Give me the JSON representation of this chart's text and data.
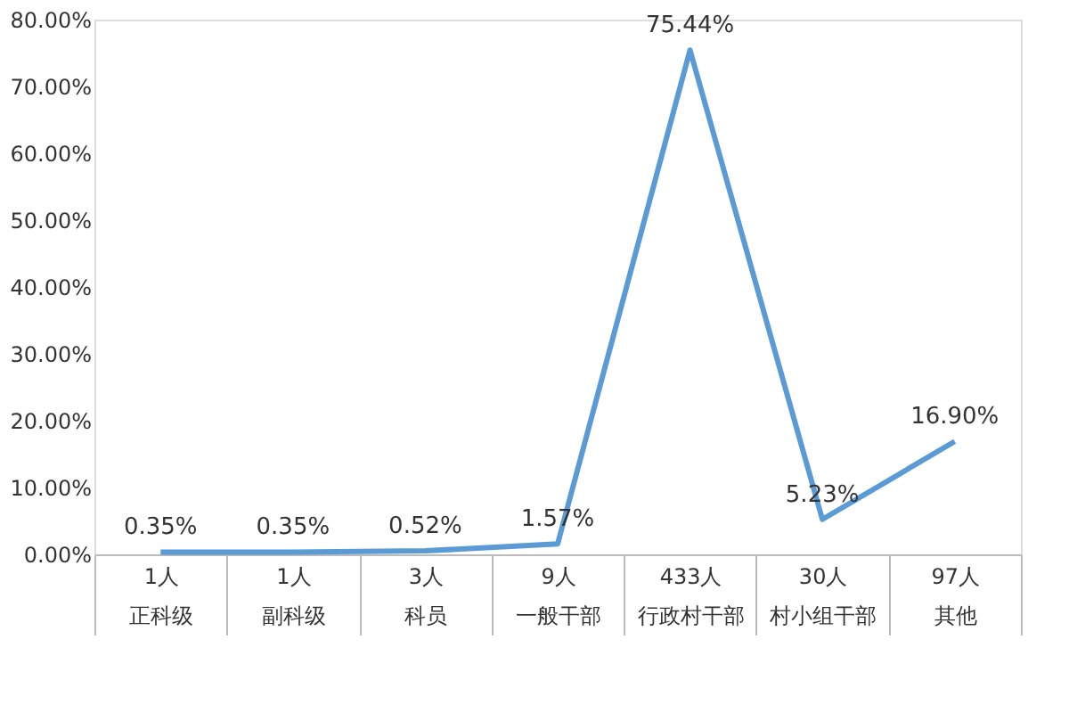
{
  "chart_data": {
    "type": "line",
    "categories": [
      "1人正科级",
      "1人副科级",
      "3人科员",
      "9人一般干部",
      "433人行政村干部",
      "30人村小组干部",
      "97人其他"
    ],
    "series": [
      {
        "color": "#5b9bd5",
        "values": [
          0.35,
          0.35,
          0.52,
          1.57,
          75.44,
          5.23,
          16.9
        ],
        "value_labels": [
          "0.35%",
          "0.35%",
          "0.52%",
          "1.57%",
          "75.44%",
          "5.23%",
          "16.90%"
        ]
      }
    ],
    "ylim": [
      0,
      80
    ],
    "yticks": [
      {
        "value": 0,
        "label": "0.00%"
      },
      {
        "value": 10,
        "label": "10.00%"
      },
      {
        "value": 20,
        "label": "20.00%"
      },
      {
        "value": 30,
        "label": "30.00%"
      },
      {
        "value": 40,
        "label": "40.00%"
      },
      {
        "value": 50,
        "label": "50.00%"
      },
      {
        "value": 60,
        "label": "60.00%"
      },
      {
        "value": 70,
        "label": "70.00%"
      },
      {
        "value": 80,
        "label": "80.00%"
      }
    ],
    "grid": false,
    "marker": "none",
    "line_style": "solid"
  }
}
